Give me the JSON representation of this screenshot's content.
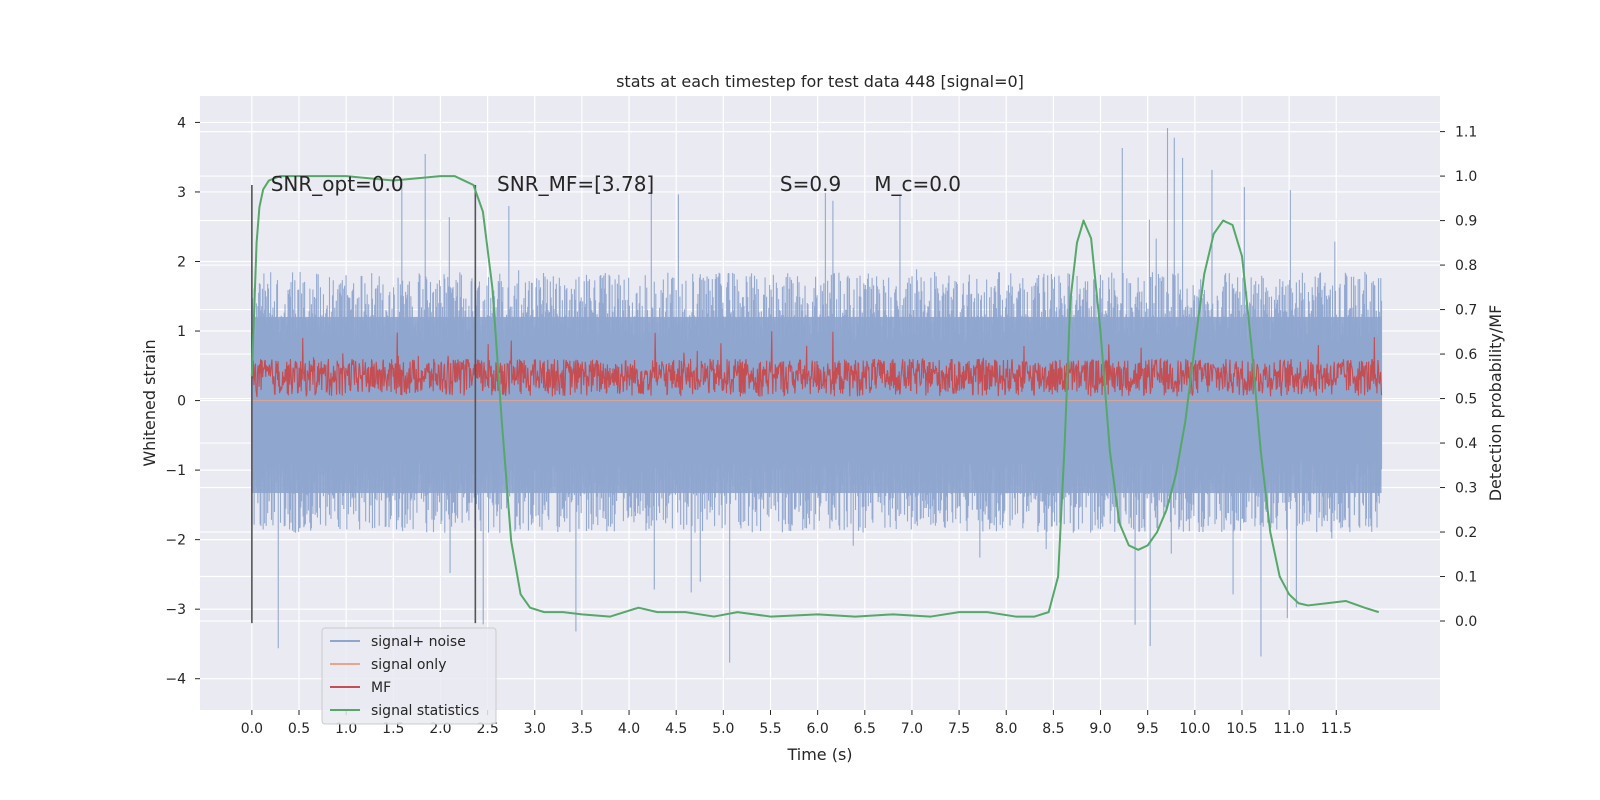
{
  "chart_data": {
    "type": "line",
    "title": "stats at each timestep for test data 448 [signal=0]",
    "xlabel": "Time (s)",
    "ylabel": "Whitened strain",
    "ylabel_right": "Detection probability/MF",
    "xlim": [
      -0.55,
      12.6
    ],
    "ylim": [
      -4.45,
      4.38
    ],
    "ylim_right": [
      -0.2,
      1.18
    ],
    "grid": true,
    "legend_position": "lower-left",
    "x_ticks": [
      "0.0",
      "0.5",
      "1.0",
      "1.5",
      "2.0",
      "2.5",
      "3.0",
      "3.5",
      "4.0",
      "4.5",
      "5.0",
      "5.5",
      "6.0",
      "6.5",
      "7.0",
      "7.5",
      "8.0",
      "8.5",
      "9.0",
      "9.5",
      "10.0",
      "10.5",
      "11.0",
      "11.5"
    ],
    "y_ticks": [
      "−4",
      "−3",
      "−2",
      "−1",
      "0",
      "1",
      "2",
      "3",
      "4"
    ],
    "y_ticks_right": [
      "0.0",
      "0.1",
      "0.2",
      "0.3",
      "0.4",
      "0.5",
      "0.6",
      "0.7",
      "0.8",
      "0.9",
      "1.0",
      "1.1"
    ],
    "annotations": [
      {
        "text": "SNR_opt=0.0",
        "x": 0.2,
        "y": 3.1
      },
      {
        "text": "SNR_MF=[3.78]",
        "x": 2.6,
        "y": 3.1
      },
      {
        "text": "S=0.9",
        "x": 5.6,
        "y": 3.1
      },
      {
        "text": "M_c=0.0",
        "x": 6.6,
        "y": 3.1
      }
    ],
    "vlines": [
      {
        "x": 0.0,
        "ymin": -3.2,
        "ymax": 3.1
      },
      {
        "x": 2.37,
        "ymin": -3.2,
        "ymax": 3.1
      }
    ],
    "series": [
      {
        "name": "signal+ noise",
        "color": "#8ea5cf",
        "axis": "left",
        "x_range": [
          0.0,
          11.98
        ],
        "envelope": {
          "typical_low": -1.9,
          "typical_high": 1.85,
          "peak_low": -4.1,
          "peak_high": 4.0
        }
      },
      {
        "name": "signal only",
        "color": "#e8a58a",
        "axis": "left",
        "x_range": [
          0.0,
          11.98
        ],
        "values_constant": 0.0
      },
      {
        "name": "MF",
        "color": "#c44e52",
        "axis": "left",
        "x_range": [
          0.0,
          11.98
        ],
        "envelope": {
          "baseline": 0.05,
          "typical_high": 0.6,
          "peak_high": 1.0
        }
      },
      {
        "name": "signal statistics",
        "color": "#55a868",
        "axis": "right",
        "x": [
          0.0,
          0.05,
          0.08,
          0.12,
          0.18,
          0.3,
          0.6,
          1.0,
          1.5,
          2.0,
          2.15,
          2.25,
          2.35,
          2.45,
          2.55,
          2.65,
          2.75,
          2.85,
          2.95,
          3.1,
          3.3,
          3.5,
          3.8,
          4.1,
          4.3,
          4.6,
          4.9,
          5.15,
          5.5,
          6.0,
          6.4,
          6.8,
          7.2,
          7.5,
          7.8,
          8.1,
          8.3,
          8.45,
          8.55,
          8.62,
          8.68,
          8.75,
          8.82,
          8.9,
          9.0,
          9.1,
          9.2,
          9.3,
          9.4,
          9.5,
          9.6,
          9.7,
          9.8,
          9.9,
          10.0,
          10.1,
          10.2,
          10.3,
          10.4,
          10.5,
          10.6,
          10.7,
          10.8,
          10.9,
          11.0,
          11.1,
          11.2,
          11.4,
          11.6,
          11.8,
          11.95
        ],
        "y": [
          0.55,
          0.85,
          0.93,
          0.97,
          0.99,
          1.0,
          1.0,
          1.0,
          0.99,
          1.0,
          1.0,
          0.99,
          0.98,
          0.92,
          0.75,
          0.45,
          0.18,
          0.06,
          0.03,
          0.02,
          0.02,
          0.015,
          0.01,
          0.03,
          0.02,
          0.02,
          0.01,
          0.02,
          0.01,
          0.015,
          0.01,
          0.015,
          0.01,
          0.02,
          0.02,
          0.01,
          0.01,
          0.02,
          0.1,
          0.4,
          0.72,
          0.85,
          0.9,
          0.86,
          0.65,
          0.38,
          0.22,
          0.17,
          0.16,
          0.17,
          0.2,
          0.25,
          0.33,
          0.45,
          0.62,
          0.78,
          0.87,
          0.9,
          0.89,
          0.82,
          0.62,
          0.38,
          0.2,
          0.1,
          0.06,
          0.04,
          0.035,
          0.04,
          0.045,
          0.03,
          0.02
        ]
      }
    ]
  }
}
